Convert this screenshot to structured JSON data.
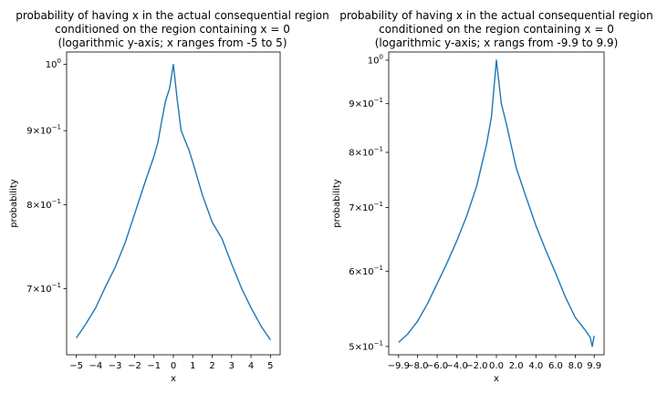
{
  "colors": {
    "series": "#1f77b4",
    "background": "#ffffff",
    "axes": "#000000"
  },
  "chart_data": [
    {
      "type": "line",
      "title": [
        "probability of having x in the actual consequential region",
        "conditioned on the region containing x = 0",
        "(logarithmic y-axis; x ranges from -5 to 5)"
      ],
      "xlabel": "x",
      "ylabel": "probability",
      "yscale": "log",
      "xlim": [
        -5.5,
        5.5
      ],
      "ylim": [
        0.63,
        1.02
      ],
      "xticks": [
        -5,
        -4,
        -3,
        -2,
        -1,
        0,
        1,
        2,
        3,
        4,
        5
      ],
      "xtick_labels": [
        "−5",
        "−4",
        "−3",
        "−2",
        "−1",
        "0",
        "1",
        "2",
        "3",
        "4",
        "5"
      ],
      "yticks": [
        {
          "value": 1.0,
          "mant": "10",
          "exp": "0"
        },
        {
          "value": 0.9,
          "mant": "9×10",
          "exp": "−1"
        },
        {
          "value": 0.8,
          "mant": "8×10",
          "exp": "−1"
        },
        {
          "value": 0.7,
          "mant": "7×10",
          "exp": "−1"
        }
      ],
      "x": [
        -5,
        -4.5,
        -4,
        -3.5,
        -3,
        -2.5,
        -2,
        -1.5,
        -1,
        -0.8,
        -0.6,
        -0.4,
        -0.2,
        0,
        0.2,
        0.4,
        0.6,
        0.8,
        1,
        1.5,
        2,
        2.5,
        3,
        3.5,
        4,
        4.5,
        5
      ],
      "y": [
        0.647,
        0.662,
        0.679,
        0.702,
        0.724,
        0.752,
        0.788,
        0.826,
        0.864,
        0.883,
        0.914,
        0.944,
        0.962,
        1.0,
        0.945,
        0.9,
        0.886,
        0.873,
        0.856,
        0.812,
        0.778,
        0.758,
        0.728,
        0.701,
        0.679,
        0.66,
        0.645
      ]
    },
    {
      "type": "line",
      "title": [
        "probability of having x in the actual consequential region",
        "conditioned on the region containing x = 0",
        "(logarithmic y-axis; x rangs from -9.9 to 9.9)"
      ],
      "xlabel": "x",
      "ylabel": "probability",
      "yscale": "log",
      "xlim": [
        -10.9,
        10.9
      ],
      "ylim": [
        0.49,
        1.02
      ],
      "xticks": [
        -9.9,
        -8,
        -6,
        -4,
        -2,
        0,
        2,
        4,
        6,
        8,
        9.9
      ],
      "xtick_labels": [
        "−9.9",
        "−8.0",
        "−6.0",
        "−4.0",
        "−2.0",
        "0.0",
        "2.0",
        "4.0",
        "6.0",
        "8.0",
        "9.9"
      ],
      "yticks": [
        {
          "value": 1.0,
          "mant": "10",
          "exp": "0"
        },
        {
          "value": 0.9,
          "mant": "9×10",
          "exp": "−1"
        },
        {
          "value": 0.8,
          "mant": "8×10",
          "exp": "−1"
        },
        {
          "value": 0.7,
          "mant": "7×10",
          "exp": "−1"
        },
        {
          "value": 0.6,
          "mant": "6×10",
          "exp": "−1"
        },
        {
          "value": 0.5,
          "mant": "5×10",
          "exp": "−1"
        }
      ],
      "x": [
        -9.9,
        -9,
        -8,
        -7,
        -6,
        -5,
        -4,
        -3,
        -2,
        -1,
        -0.5,
        0,
        0.5,
        1,
        2,
        3,
        4,
        5,
        6,
        7,
        8,
        9,
        9.5,
        9.7,
        9.9
      ],
      "y": [
        0.505,
        0.515,
        0.531,
        0.554,
        0.582,
        0.612,
        0.646,
        0.686,
        0.737,
        0.815,
        0.872,
        1.0,
        0.9,
        0.858,
        0.771,
        0.718,
        0.67,
        0.631,
        0.597,
        0.563,
        0.536,
        0.52,
        0.511,
        0.5,
        0.513
      ]
    }
  ]
}
